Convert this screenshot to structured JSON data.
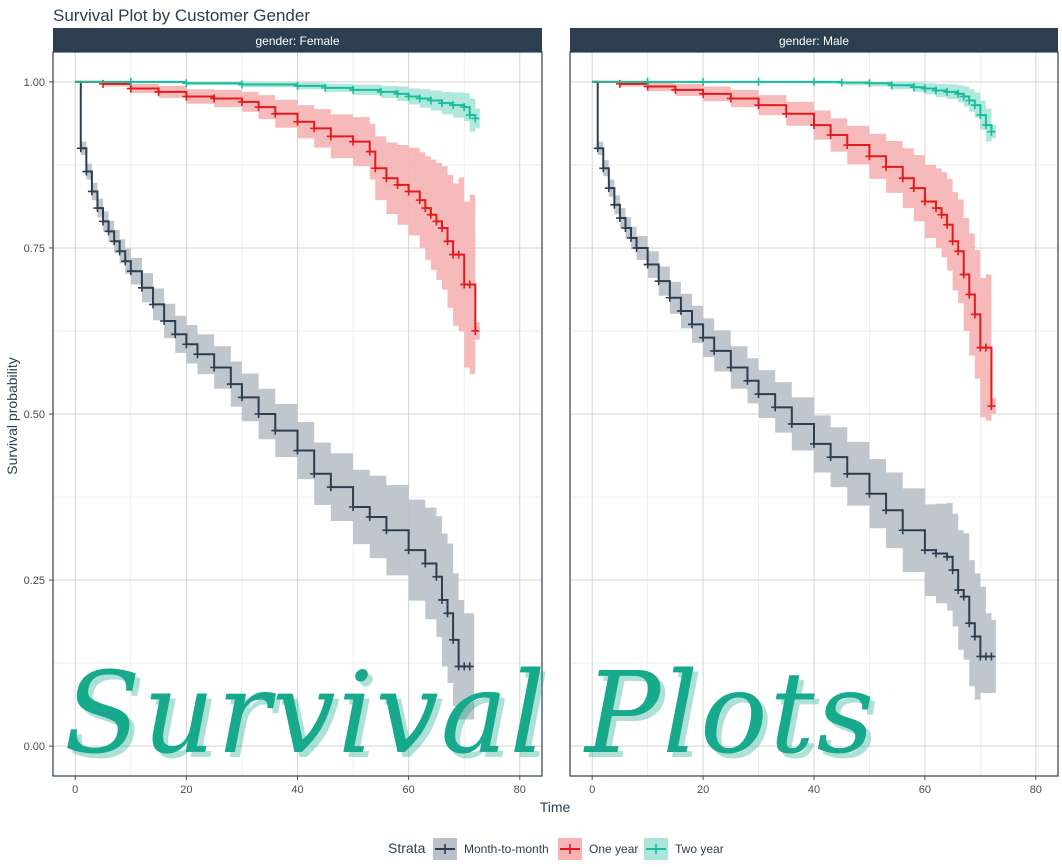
{
  "chart_data": {
    "type": "line",
    "title": "Survival Plot by Customer Gender",
    "xlabel": "Time",
    "ylabel": "Survival probability",
    "xlim": [
      -4,
      84
    ],
    "ylim": [
      -0.045,
      1.045
    ],
    "x_ticks": [
      0,
      20,
      40,
      60,
      80
    ],
    "y_ticks": [
      0.0,
      0.25,
      0.5,
      0.75,
      1.0
    ],
    "y_tick_labels": [
      "0.00",
      "0.25",
      "0.50",
      "0.75",
      "1.00"
    ],
    "grid": true,
    "legend": {
      "title": "Strata",
      "placement": "bottom",
      "entries": [
        "Month-to-month",
        "One year",
        "Two year"
      ]
    },
    "series_colors": {
      "Month-to-month": "#2c3e50",
      "One year": "#e31a1c",
      "Two year": "#18bc9c"
    },
    "band_colors": {
      "Month-to-month": "#b9c0c9",
      "One year": "#f6b3b3",
      "Two year": "#a9e6d9"
    },
    "strip_color": "#2c3e50",
    "facets": [
      {
        "strip_label": "gender: Female",
        "series": [
          {
            "name": "Month-to-month",
            "x": [
              0,
              1,
              2,
              3,
              4,
              5,
              6,
              7,
              8,
              9,
              10,
              12,
              14,
              16,
              18,
              20,
              22,
              25,
              28,
              30,
              33,
              36,
              40,
              43,
              46,
              50,
              53,
              56,
              60,
              63,
              65,
              66,
              67,
              68,
              69,
              70,
              71
            ],
            "y": [
              1.0,
              0.9,
              0.865,
              0.835,
              0.81,
              0.79,
              0.775,
              0.76,
              0.745,
              0.73,
              0.715,
              0.69,
              0.665,
              0.64,
              0.62,
              0.605,
              0.59,
              0.57,
              0.545,
              0.525,
              0.5,
              0.475,
              0.445,
              0.41,
              0.39,
              0.36,
              0.345,
              0.325,
              0.295,
              0.275,
              0.255,
              0.22,
              0.2,
              0.16,
              0.12,
              0.12,
              0.12
            ],
            "lower": [
              1.0,
              0.89,
              0.853,
              0.822,
              0.796,
              0.775,
              0.759,
              0.743,
              0.727,
              0.711,
              0.695,
              0.668,
              0.641,
              0.614,
              0.592,
              0.576,
              0.56,
              0.538,
              0.511,
              0.489,
              0.462,
              0.435,
              0.402,
              0.363,
              0.339,
              0.304,
              0.283,
              0.257,
              0.219,
              0.191,
              0.164,
              0.12,
              0.095,
              0.06,
              0.04,
              0.04,
              0.04
            ],
            "upper": [
              1.0,
              0.91,
              0.877,
              0.848,
              0.824,
              0.805,
              0.791,
              0.777,
              0.763,
              0.749,
              0.735,
              0.712,
              0.689,
              0.666,
              0.648,
              0.634,
              0.62,
              0.602,
              0.579,
              0.561,
              0.538,
              0.515,
              0.488,
              0.457,
              0.441,
              0.416,
              0.407,
              0.393,
              0.371,
              0.359,
              0.346,
              0.32,
              0.305,
              0.26,
              0.22,
              0.2,
              0.2
            ]
          },
          {
            "name": "One year",
            "x": [
              0,
              5,
              10,
              15,
              20,
              25,
              30,
              33,
              36,
              40,
              43,
              46,
              50,
              53,
              54,
              56,
              58,
              60,
              62,
              63,
              64,
              65,
              66,
              67,
              68,
              69,
              70,
              71,
              72
            ],
            "y": [
              1.0,
              0.997,
              0.99,
              0.985,
              0.978,
              0.975,
              0.97,
              0.962,
              0.952,
              0.94,
              0.93,
              0.918,
              0.91,
              0.895,
              0.87,
              0.855,
              0.845,
              0.835,
              0.822,
              0.81,
              0.8,
              0.79,
              0.78,
              0.76,
              0.74,
              0.74,
              0.695,
              0.695,
              0.625
            ],
            "lower": [
              1.0,
              0.993,
              0.983,
              0.976,
              0.967,
              0.962,
              0.955,
              0.944,
              0.931,
              0.915,
              0.901,
              0.885,
              0.873,
              0.853,
              0.822,
              0.801,
              0.785,
              0.769,
              0.75,
              0.732,
              0.717,
              0.702,
              0.687,
              0.66,
              0.633,
              0.624,
              0.57,
              0.56,
              0.612
            ],
            "upper": [
              1.0,
              1.0,
              0.997,
              0.994,
              0.989,
              0.988,
              0.985,
              0.98,
              0.973,
              0.965,
              0.959,
              0.951,
              0.947,
              0.937,
              0.918,
              0.909,
              0.905,
              0.901,
              0.894,
              0.888,
              0.883,
              0.878,
              0.873,
              0.86,
              0.847,
              0.856,
              0.82,
              0.83,
              0.638
            ]
          },
          {
            "name": "Two year",
            "x": [
              0,
              10,
              20,
              30,
              40,
              45,
              50,
              55,
              58,
              60,
              62,
              64,
              66,
              68,
              70,
              71,
              72
            ],
            "y": [
              1.0,
              1.0,
              0.998,
              0.996,
              0.994,
              0.991,
              0.988,
              0.985,
              0.982,
              0.978,
              0.975,
              0.972,
              0.968,
              0.965,
              0.962,
              0.95,
              0.945
            ],
            "lower": [
              1.0,
              0.998,
              0.995,
              0.992,
              0.989,
              0.985,
              0.98,
              0.976,
              0.971,
              0.966,
              0.961,
              0.957,
              0.951,
              0.946,
              0.941,
              0.925,
              0.93
            ],
            "upper": [
              1.0,
              1.0,
              1.0,
              1.0,
              0.999,
              0.997,
              0.996,
              0.994,
              0.993,
              0.99,
              0.989,
              0.987,
              0.985,
              0.984,
              0.983,
              0.975,
              0.96
            ]
          }
        ]
      },
      {
        "strip_label": "gender: Male",
        "series": [
          {
            "name": "Month-to-month",
            "x": [
              0,
              1,
              2,
              3,
              4,
              5,
              6,
              7,
              8,
              10,
              12,
              14,
              16,
              18,
              20,
              22,
              25,
              28,
              30,
              33,
              36,
              40,
              43,
              46,
              50,
              53,
              56,
              60,
              62,
              64,
              65,
              66,
              67,
              68,
              69,
              70,
              71,
              72
            ],
            "y": [
              1.0,
              0.9,
              0.87,
              0.84,
              0.815,
              0.795,
              0.78,
              0.765,
              0.75,
              0.725,
              0.7,
              0.675,
              0.655,
              0.635,
              0.615,
              0.595,
              0.57,
              0.55,
              0.53,
              0.51,
              0.485,
              0.455,
              0.435,
              0.41,
              0.38,
              0.355,
              0.325,
              0.295,
              0.29,
              0.285,
              0.265,
              0.235,
              0.225,
              0.185,
              0.165,
              0.135,
              0.135,
              0.135
            ],
            "lower": [
              1.0,
              0.89,
              0.858,
              0.827,
              0.801,
              0.78,
              0.764,
              0.748,
              0.732,
              0.705,
              0.678,
              0.651,
              0.629,
              0.607,
              0.586,
              0.564,
              0.538,
              0.516,
              0.494,
              0.472,
              0.445,
              0.412,
              0.39,
              0.362,
              0.328,
              0.298,
              0.262,
              0.226,
              0.215,
              0.204,
              0.18,
              0.145,
              0.13,
              0.09,
              0.07,
              0.08,
              0.08,
              0.08
            ],
            "upper": [
              1.0,
              0.91,
              0.882,
              0.853,
              0.829,
              0.81,
              0.796,
              0.782,
              0.768,
              0.745,
              0.722,
              0.699,
              0.681,
              0.663,
              0.644,
              0.626,
              0.602,
              0.584,
              0.566,
              0.548,
              0.525,
              0.498,
              0.48,
              0.458,
              0.432,
              0.412,
              0.388,
              0.364,
              0.365,
              0.366,
              0.35,
              0.325,
              0.32,
              0.28,
              0.26,
              0.24,
              0.2,
              0.19
            ]
          },
          {
            "name": "One year",
            "x": [
              0,
              5,
              10,
              15,
              20,
              25,
              30,
              35,
              40,
              43,
              46,
              50,
              53,
              56,
              58,
              60,
              62,
              63,
              64,
              65,
              66,
              67,
              68,
              69,
              70,
              71,
              72
            ],
            "y": [
              1.0,
              0.997,
              0.993,
              0.988,
              0.982,
              0.975,
              0.965,
              0.952,
              0.935,
              0.92,
              0.905,
              0.888,
              0.872,
              0.855,
              0.84,
              0.82,
              0.81,
              0.8,
              0.785,
              0.76,
              0.745,
              0.71,
              0.68,
              0.65,
              0.6,
              0.6,
              0.512
            ],
            "lower": [
              1.0,
              0.993,
              0.986,
              0.979,
              0.971,
              0.962,
              0.95,
              0.934,
              0.913,
              0.895,
              0.876,
              0.854,
              0.833,
              0.81,
              0.79,
              0.765,
              0.75,
              0.736,
              0.716,
              0.686,
              0.667,
              0.625,
              0.588,
              0.553,
              0.495,
              0.49,
              0.5
            ],
            "upper": [
              1.0,
              1.0,
              1.0,
              0.997,
              0.993,
              0.988,
              0.98,
              0.97,
              0.957,
              0.945,
              0.934,
              0.922,
              0.911,
              0.9,
              0.89,
              0.875,
              0.87,
              0.864,
              0.854,
              0.834,
              0.823,
              0.795,
              0.772,
              0.747,
              0.705,
              0.71,
              0.524
            ]
          },
          {
            "name": "Two year",
            "x": [
              0,
              10,
              20,
              30,
              40,
              45,
              50,
              54,
              58,
              60,
              62,
              64,
              66,
              67,
              68,
              69,
              70,
              71,
              72
            ],
            "y": [
              1.0,
              1.0,
              1.0,
              1.0,
              1.0,
              0.999,
              0.998,
              0.995,
              0.992,
              0.99,
              0.987,
              0.985,
              0.982,
              0.978,
              0.972,
              0.965,
              0.95,
              0.935,
              0.925
            ],
            "lower": [
              1.0,
              1.0,
              1.0,
              0.998,
              0.997,
              0.995,
              0.993,
              0.989,
              0.985,
              0.981,
              0.977,
              0.974,
              0.969,
              0.963,
              0.955,
              0.946,
              0.928,
              0.91,
              0.915
            ],
            "upper": [
              1.0,
              1.0,
              1.0,
              1.0,
              1.0,
              1.0,
              1.0,
              1.0,
              0.999,
              0.998,
              0.997,
              0.996,
              0.995,
              0.993,
              0.989,
              0.984,
              0.972,
              0.96,
              0.935
            ]
          }
        ]
      }
    ]
  },
  "overlay": {
    "text": "Survival Plots",
    "color": "#16a98c"
  }
}
